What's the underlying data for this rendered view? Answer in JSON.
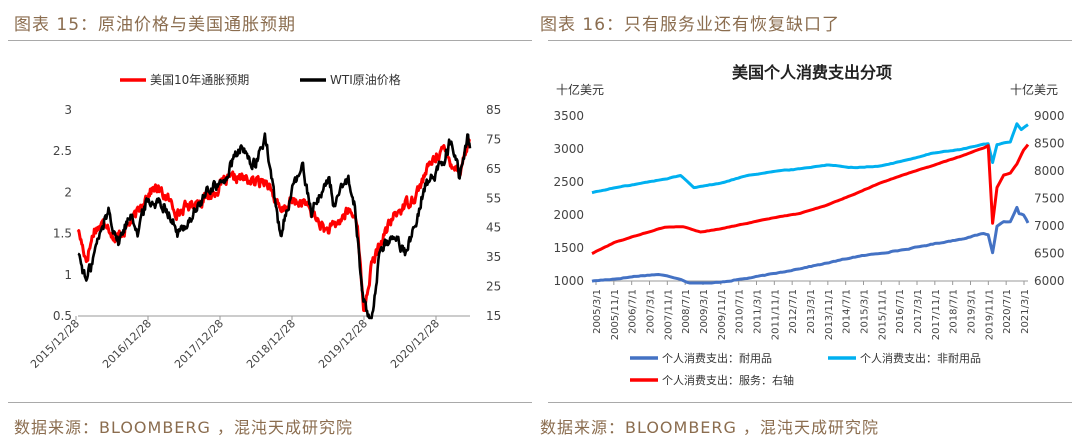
{
  "left": {
    "figure_title": "图表 15：原油价格与美国通胀预期",
    "source": "数据来源：BLOOMBERG ，混沌天成研究院"
  },
  "right": {
    "figure_title": "图表 16：只有服务业还有恢复缺口了",
    "source": "数据来源：BLOOMBERG ，混沌天成研究院"
  },
  "colors": {
    "red": "#ff0000",
    "black": "#000000",
    "dark_blue": "#4472c4",
    "light_blue": "#00b0f0",
    "caption": "#8b6d4f"
  },
  "chart_data": [
    {
      "type": "line",
      "title": "",
      "x_tick_labels": [
        "2015/12/28",
        "2016/12/28",
        "2017/12/28",
        "2018/12/28",
        "2019/12/28",
        "2020/12/28"
      ],
      "y_left_ticks": [
        "3",
        "2.5",
        "2",
        "1.5",
        "1",
        "0.5"
      ],
      "y_left_range": [
        0.5,
        3
      ],
      "y_right_ticks": [
        "85",
        "75",
        "65",
        "55",
        "45",
        "35",
        "25",
        "15"
      ],
      "y_right_range": [
        15,
        85
      ],
      "legend_position": "top",
      "x_range": [
        "2015-12-28",
        "2021-10-15"
      ],
      "series": [
        {
          "name": "美国10年通胀预期",
          "axis": "left",
          "color": "#ff0000",
          "points": [
            [
              "2015-12-28",
              1.55
            ],
            [
              "2016-02-11",
              1.18
            ],
            [
              "2016-03-25",
              1.55
            ],
            [
              "2016-06-01",
              1.65
            ],
            [
              "2016-07-15",
              1.42
            ],
            [
              "2016-09-15",
              1.58
            ],
            [
              "2016-11-15",
              1.75
            ],
            [
              "2016-12-28",
              1.96
            ],
            [
              "2017-02-15",
              2.06
            ],
            [
              "2017-04-15",
              1.95
            ],
            [
              "2017-06-20",
              1.75
            ],
            [
              "2017-08-01",
              1.82
            ],
            [
              "2017-10-15",
              1.9
            ],
            [
              "2017-12-28",
              1.98
            ],
            [
              "2018-02-15",
              2.12
            ],
            [
              "2018-05-15",
              2.18
            ],
            [
              "2018-08-15",
              2.12
            ],
            [
              "2018-10-15",
              2.15
            ],
            [
              "2018-12-28",
              1.74
            ],
            [
              "2019-02-15",
              1.88
            ],
            [
              "2019-05-01",
              1.88
            ],
            [
              "2019-07-01",
              1.7
            ],
            [
              "2019-08-30",
              1.53
            ],
            [
              "2019-10-15",
              1.58
            ],
            [
              "2019-12-28",
              1.78
            ],
            [
              "2020-02-15",
              1.65
            ],
            [
              "2020-03-19",
              0.52
            ],
            [
              "2020-05-01",
              1.1
            ],
            [
              "2020-07-01",
              1.45
            ],
            [
              "2020-09-01",
              1.72
            ],
            [
              "2020-12-28",
              1.98
            ],
            [
              "2021-03-15",
              2.35
            ],
            [
              "2021-05-15",
              2.53
            ],
            [
              "2021-07-01",
              2.38
            ],
            [
              "2021-08-20",
              2.26
            ],
            [
              "2021-10-01",
              2.56
            ],
            [
              "2021-10-15",
              2.65
            ]
          ]
        },
        {
          "name": "WTI原油价格",
          "axis": "right",
          "color": "#000000",
          "points": [
            [
              "2015-12-28",
              37
            ],
            [
              "2016-02-11",
              26.5
            ],
            [
              "2016-04-15",
              41
            ],
            [
              "2016-06-10",
              51
            ],
            [
              "2016-08-02",
              40
            ],
            [
              "2016-10-15",
              51
            ],
            [
              "2016-11-14",
              43
            ],
            [
              "2016-12-28",
              53.5
            ],
            [
              "2017-02-20",
              54
            ],
            [
              "2017-04-12",
              53
            ],
            [
              "2017-06-21",
              42.5
            ],
            [
              "2017-09-15",
              50
            ],
            [
              "2017-12-28",
              60
            ],
            [
              "2018-02-09",
              59
            ],
            [
              "2018-05-20",
              72
            ],
            [
              "2018-08-15",
              66
            ],
            [
              "2018-10-03",
              76.4
            ],
            [
              "2018-12-24",
              42.5
            ],
            [
              "2019-02-20",
              56
            ],
            [
              "2019-04-23",
              66
            ],
            [
              "2019-06-12",
              51
            ],
            [
              "2019-09-16",
              62
            ],
            [
              "2019-10-10",
              52.5
            ],
            [
              "2019-12-28",
              61.5
            ],
            [
              "2020-01-28",
              53
            ],
            [
              "2020-03-18",
              20.5
            ],
            [
              "2020-04-27",
              12.3
            ],
            [
              "2020-06-15",
              37
            ],
            [
              "2020-08-25",
              43
            ],
            [
              "2020-11-02",
              36
            ],
            [
              "2020-12-28",
              48
            ],
            [
              "2021-02-15",
              60
            ],
            [
              "2021-04-15",
              63
            ],
            [
              "2021-07-06",
              75
            ],
            [
              "2021-08-20",
              62
            ],
            [
              "2021-10-01",
              76
            ],
            [
              "2021-10-15",
              72
            ]
          ]
        }
      ]
    },
    {
      "type": "line",
      "title": "美国个人消费支出分项",
      "left_unit": "十亿美元",
      "right_unit": "十亿美元",
      "x_tick_labels": [
        "2005/3/1",
        "2005/11/1",
        "2006/7/1",
        "2007/3/1",
        "2007/11/1",
        "2008/7/1",
        "2009/3/1",
        "2009/11/1",
        "2010/7/1",
        "2011/3/1",
        "2011/11/1",
        "2012/7/1",
        "2013/3/1",
        "2013/11/1",
        "2014/7/1",
        "2015/3/1",
        "2015/11/1",
        "2016/7/1",
        "2017/3/1",
        "2017/11/1",
        "2018/7/1",
        "2019/3/1",
        "2019/11/1",
        "2020/7/1",
        "2021/3/1"
      ],
      "y_left_ticks": [
        "3500",
        "3000",
        "2500",
        "2000",
        "1500",
        "1000"
      ],
      "y_left_range": [
        1000,
        3500
      ],
      "y_right_ticks": [
        "9000",
        "8500",
        "8000",
        "7500",
        "7000",
        "6500",
        "6000"
      ],
      "y_right_range": [
        6000,
        9000
      ],
      "legend_position": "bottom",
      "x_range": [
        "2005-03-01",
        "2021-08-01"
      ],
      "series": [
        {
          "name": "个人消费支出：耐用品",
          "axis": "left",
          "color": "#4472c4",
          "points": [
            [
              "2005-03-01",
              1000
            ],
            [
              "2006-01-01",
              1030
            ],
            [
              "2007-01-01",
              1080
            ],
            [
              "2007-09-01",
              1100
            ],
            [
              "2008-06-01",
              1040
            ],
            [
              "2008-12-01",
              960
            ],
            [
              "2009-05-01",
              950
            ],
            [
              "2010-01-01",
              985
            ],
            [
              "2011-01-01",
              1040
            ],
            [
              "2012-01-01",
              1110
            ],
            [
              "2013-01-01",
              1190
            ],
            [
              "2014-01-01",
              1270
            ],
            [
              "2015-01-01",
              1360
            ],
            [
              "2016-01-01",
              1420
            ],
            [
              "2017-01-01",
              1480
            ],
            [
              "2018-01-01",
              1560
            ],
            [
              "2019-01-01",
              1630
            ],
            [
              "2019-12-01",
              1720
            ],
            [
              "2020-02-01",
              1700
            ],
            [
              "2020-04-01",
              1430
            ],
            [
              "2020-06-01",
              1830
            ],
            [
              "2020-09-01",
              1900
            ],
            [
              "2020-12-01",
              1900
            ],
            [
              "2021-03-01",
              2120
            ],
            [
              "2021-04-01",
              2020
            ],
            [
              "2021-06-01",
              2000
            ],
            [
              "2021-08-01",
              1880
            ]
          ]
        },
        {
          "name": "个人消费支出：非耐用品",
          "axis": "left",
          "color": "#00b0f0",
          "points": [
            [
              "2005-03-01",
              2340
            ],
            [
              "2006-01-01",
              2410
            ],
            [
              "2007-01-01",
              2480
            ],
            [
              "2008-01-01",
              2550
            ],
            [
              "2008-07-01",
              2600
            ],
            [
              "2009-01-01",
              2420
            ],
            [
              "2010-01-01",
              2480
            ],
            [
              "2011-01-01",
              2600
            ],
            [
              "2012-01-01",
              2660
            ],
            [
              "2013-01-01",
              2700
            ],
            [
              "2014-01-01",
              2760
            ],
            [
              "2015-01-01",
              2720
            ],
            [
              "2016-01-01",
              2740
            ],
            [
              "2017-01-01",
              2830
            ],
            [
              "2018-01-01",
              2940
            ],
            [
              "2019-01-01",
              2990
            ],
            [
              "2019-12-01",
              3070
            ],
            [
              "2020-02-01",
              3080
            ],
            [
              "2020-04-01",
              2800
            ],
            [
              "2020-06-01",
              3070
            ],
            [
              "2020-12-01",
              3110
            ],
            [
              "2021-03-01",
              3380
            ],
            [
              "2021-05-01",
              3290
            ],
            [
              "2021-08-01",
              3370
            ]
          ]
        },
        {
          "name": "个人消费支出：服务：右轴",
          "axis": "right",
          "color": "#ff0000",
          "points": [
            [
              "2005-03-01",
              6500
            ],
            [
              "2006-01-01",
              6700
            ],
            [
              "2007-01-01",
              6850
            ],
            [
              "2007-12-01",
              6980
            ],
            [
              "2008-08-01",
              6990
            ],
            [
              "2009-04-01",
              6890
            ],
            [
              "2010-01-01",
              6950
            ],
            [
              "2011-01-01",
              7050
            ],
            [
              "2012-01-01",
              7150
            ],
            [
              "2013-01-01",
              7230
            ],
            [
              "2014-01-01",
              7380
            ],
            [
              "2015-01-01",
              7570
            ],
            [
              "2016-01-01",
              7780
            ],
            [
              "2017-01-01",
              7950
            ],
            [
              "2018-01-01",
              8100
            ],
            [
              "2019-01-01",
              8260
            ],
            [
              "2019-12-01",
              8420
            ],
            [
              "2020-02-01",
              8460
            ],
            [
              "2020-04-01",
              7050
            ],
            [
              "2020-06-01",
              7700
            ],
            [
              "2020-09-01",
              7930
            ],
            [
              "2020-12-01",
              7960
            ],
            [
              "2021-03-01",
              8130
            ],
            [
              "2021-06-01",
              8380
            ],
            [
              "2021-08-01",
              8480
            ]
          ]
        }
      ]
    }
  ]
}
